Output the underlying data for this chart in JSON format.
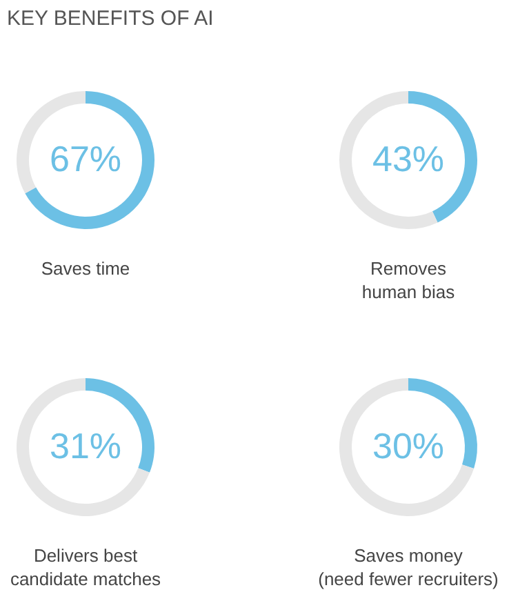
{
  "chart_data": [
    {
      "type": "donut",
      "title": "KEY BENEFITS OF AI",
      "xlabel": "Saves time",
      "values": [
        67,
        33
      ],
      "colors": [
        "#6cc0e5",
        "#e6e6e6"
      ],
      "value_labels": [
        "67%",
        null
      ]
    },
    {
      "type": "donut",
      "xlabel": "Removes\nhuman bias",
      "values": [
        43,
        57
      ],
      "colors": [
        "#6cc0e5",
        "#e6e6e6"
      ],
      "value_labels": [
        "43%",
        null
      ]
    },
    {
      "type": "donut",
      "xlabel": "Delivers best\ncandidate matches",
      "values": [
        31,
        69
      ],
      "colors": [
        "#6cc0e5",
        "#e6e6e6"
      ],
      "value_labels": [
        "31%",
        null
      ]
    },
    {
      "type": "donut",
      "xlabel": "Saves money\n(need fewer recruiters)",
      "values": [
        30,
        70
      ],
      "colors": [
        "#6cc0e5",
        "#e6e6e6"
      ],
      "value_labels": [
        "30%",
        null
      ]
    }
  ]
}
